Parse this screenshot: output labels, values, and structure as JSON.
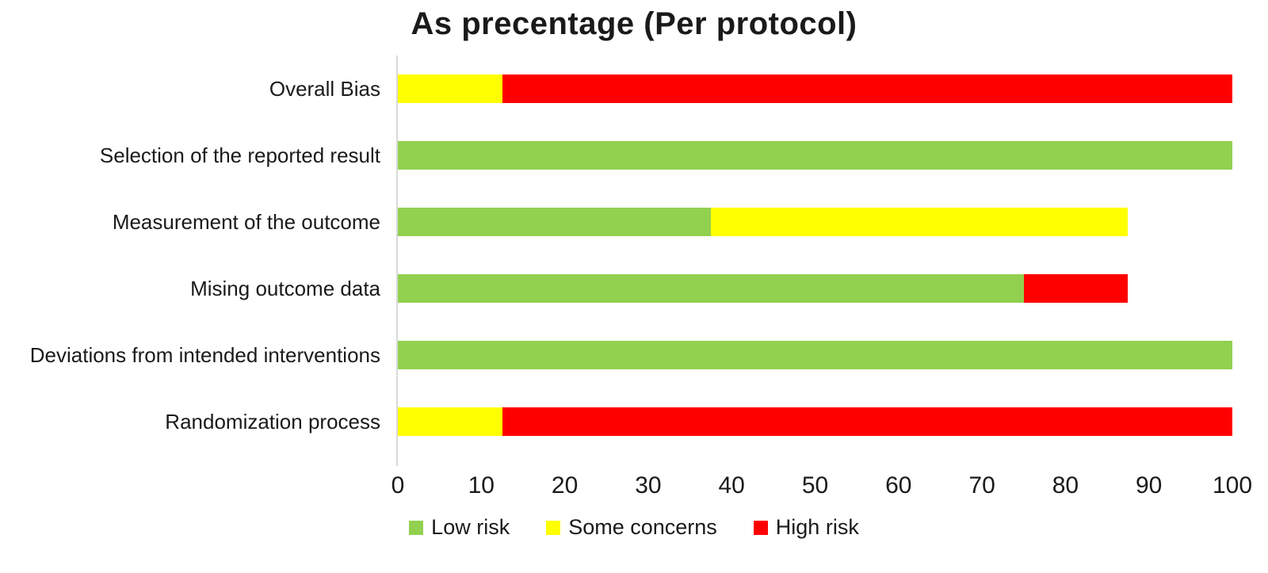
{
  "title": "As precentage (Per protocol)",
  "colors": {
    "low_risk": "#92D050",
    "some_concerns": "#FFFF00",
    "high_risk": "#FF0000",
    "axis_line": "#D9D9D9",
    "text": "#1A1A1A"
  },
  "chart_data": {
    "type": "bar",
    "orientation": "horizontal",
    "stacked": true,
    "title": "As precentage (Per protocol)",
    "categories": [
      "Overall Bias",
      "Selection of the reported result",
      "Measurement of the outcome",
      "Mising outcome data",
      "Deviations from intended interventions",
      "Randomization process"
    ],
    "series": [
      {
        "name": "Low risk",
        "color": "#92D050",
        "values": [
          0,
          100,
          37.5,
          75,
          100,
          0
        ]
      },
      {
        "name": "Some concerns",
        "color": "#FFFF00",
        "values": [
          12.5,
          0,
          50,
          0,
          0,
          12.5
        ]
      },
      {
        "name": "High risk",
        "color": "#FF0000",
        "values": [
          87.5,
          0,
          0,
          12.5,
          0,
          87.5
        ]
      }
    ],
    "xlabel": "",
    "ylabel": "",
    "xlim": [
      0,
      100
    ],
    "xticks": [
      0,
      10,
      20,
      30,
      40,
      50,
      60,
      70,
      80,
      90,
      100
    ],
    "grid": false,
    "legend_position": "bottom"
  }
}
